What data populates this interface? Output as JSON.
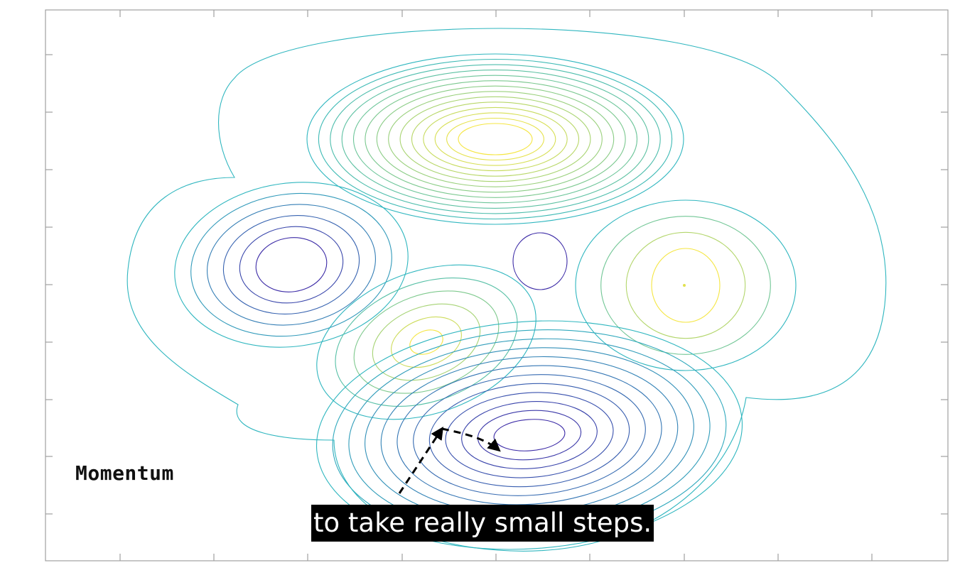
{
  "figure": {
    "optimizer_label": "Momentum",
    "caption": "to take really small steps.",
    "colormap": {
      "low": "#3b2aa6",
      "mid": "#2fb6bf",
      "high": "#f5e642"
    },
    "axes": {
      "tick_labels_visible": false,
      "grid": false,
      "frame_color": "#a0a0a0"
    },
    "contour_sets": [
      {
        "name": "upper-peak",
        "kind": "maximum",
        "levels": 14
      },
      {
        "name": "left-basin",
        "kind": "minimum",
        "levels": 6
      },
      {
        "name": "center-saddle-peak",
        "kind": "maximum",
        "levels": 6
      },
      {
        "name": "center-pocket",
        "kind": "minimum",
        "levels": 1
      },
      {
        "name": "right-peak",
        "kind": "maximum",
        "levels": 4
      },
      {
        "name": "lower-basin",
        "kind": "minimum",
        "levels": 12
      }
    ],
    "path": {
      "style": "dashed",
      "color": "#000000",
      "arrowheads": true
    }
  }
}
